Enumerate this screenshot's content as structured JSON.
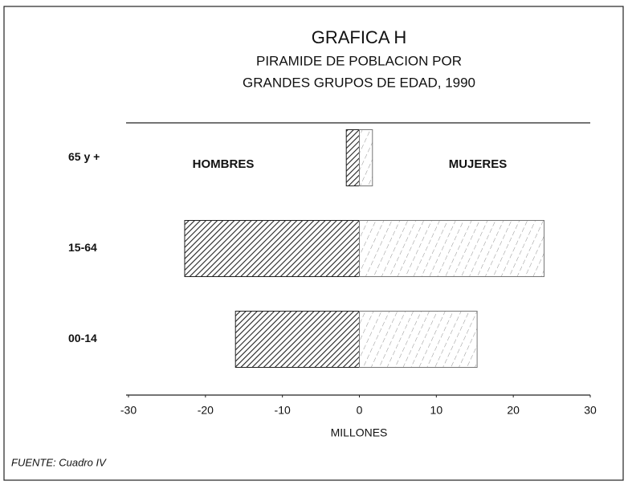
{
  "chart_data": {
    "type": "pyramid",
    "title": "GRAFICA H",
    "subtitle": [
      "PIRAMIDE DE POBLACION POR",
      "GRANDES GRUPOS DE EDAD, 1990"
    ],
    "categories": [
      "65 y +",
      "15-64",
      "00-14"
    ],
    "series": [
      {
        "name": "HOMBRES",
        "color": "#222222",
        "values": [
          -1.7,
          -22.7,
          -16.1
        ]
      },
      {
        "name": "MUJERES",
        "color": "#777777",
        "values": [
          1.7,
          24.0,
          15.3
        ]
      }
    ],
    "xlim": [
      -30,
      30
    ],
    "xticks": [
      -30,
      -20,
      -10,
      0,
      10,
      20,
      30
    ],
    "xlabel": "MILLONES",
    "source": "FUENTE: Cuadro IV"
  }
}
